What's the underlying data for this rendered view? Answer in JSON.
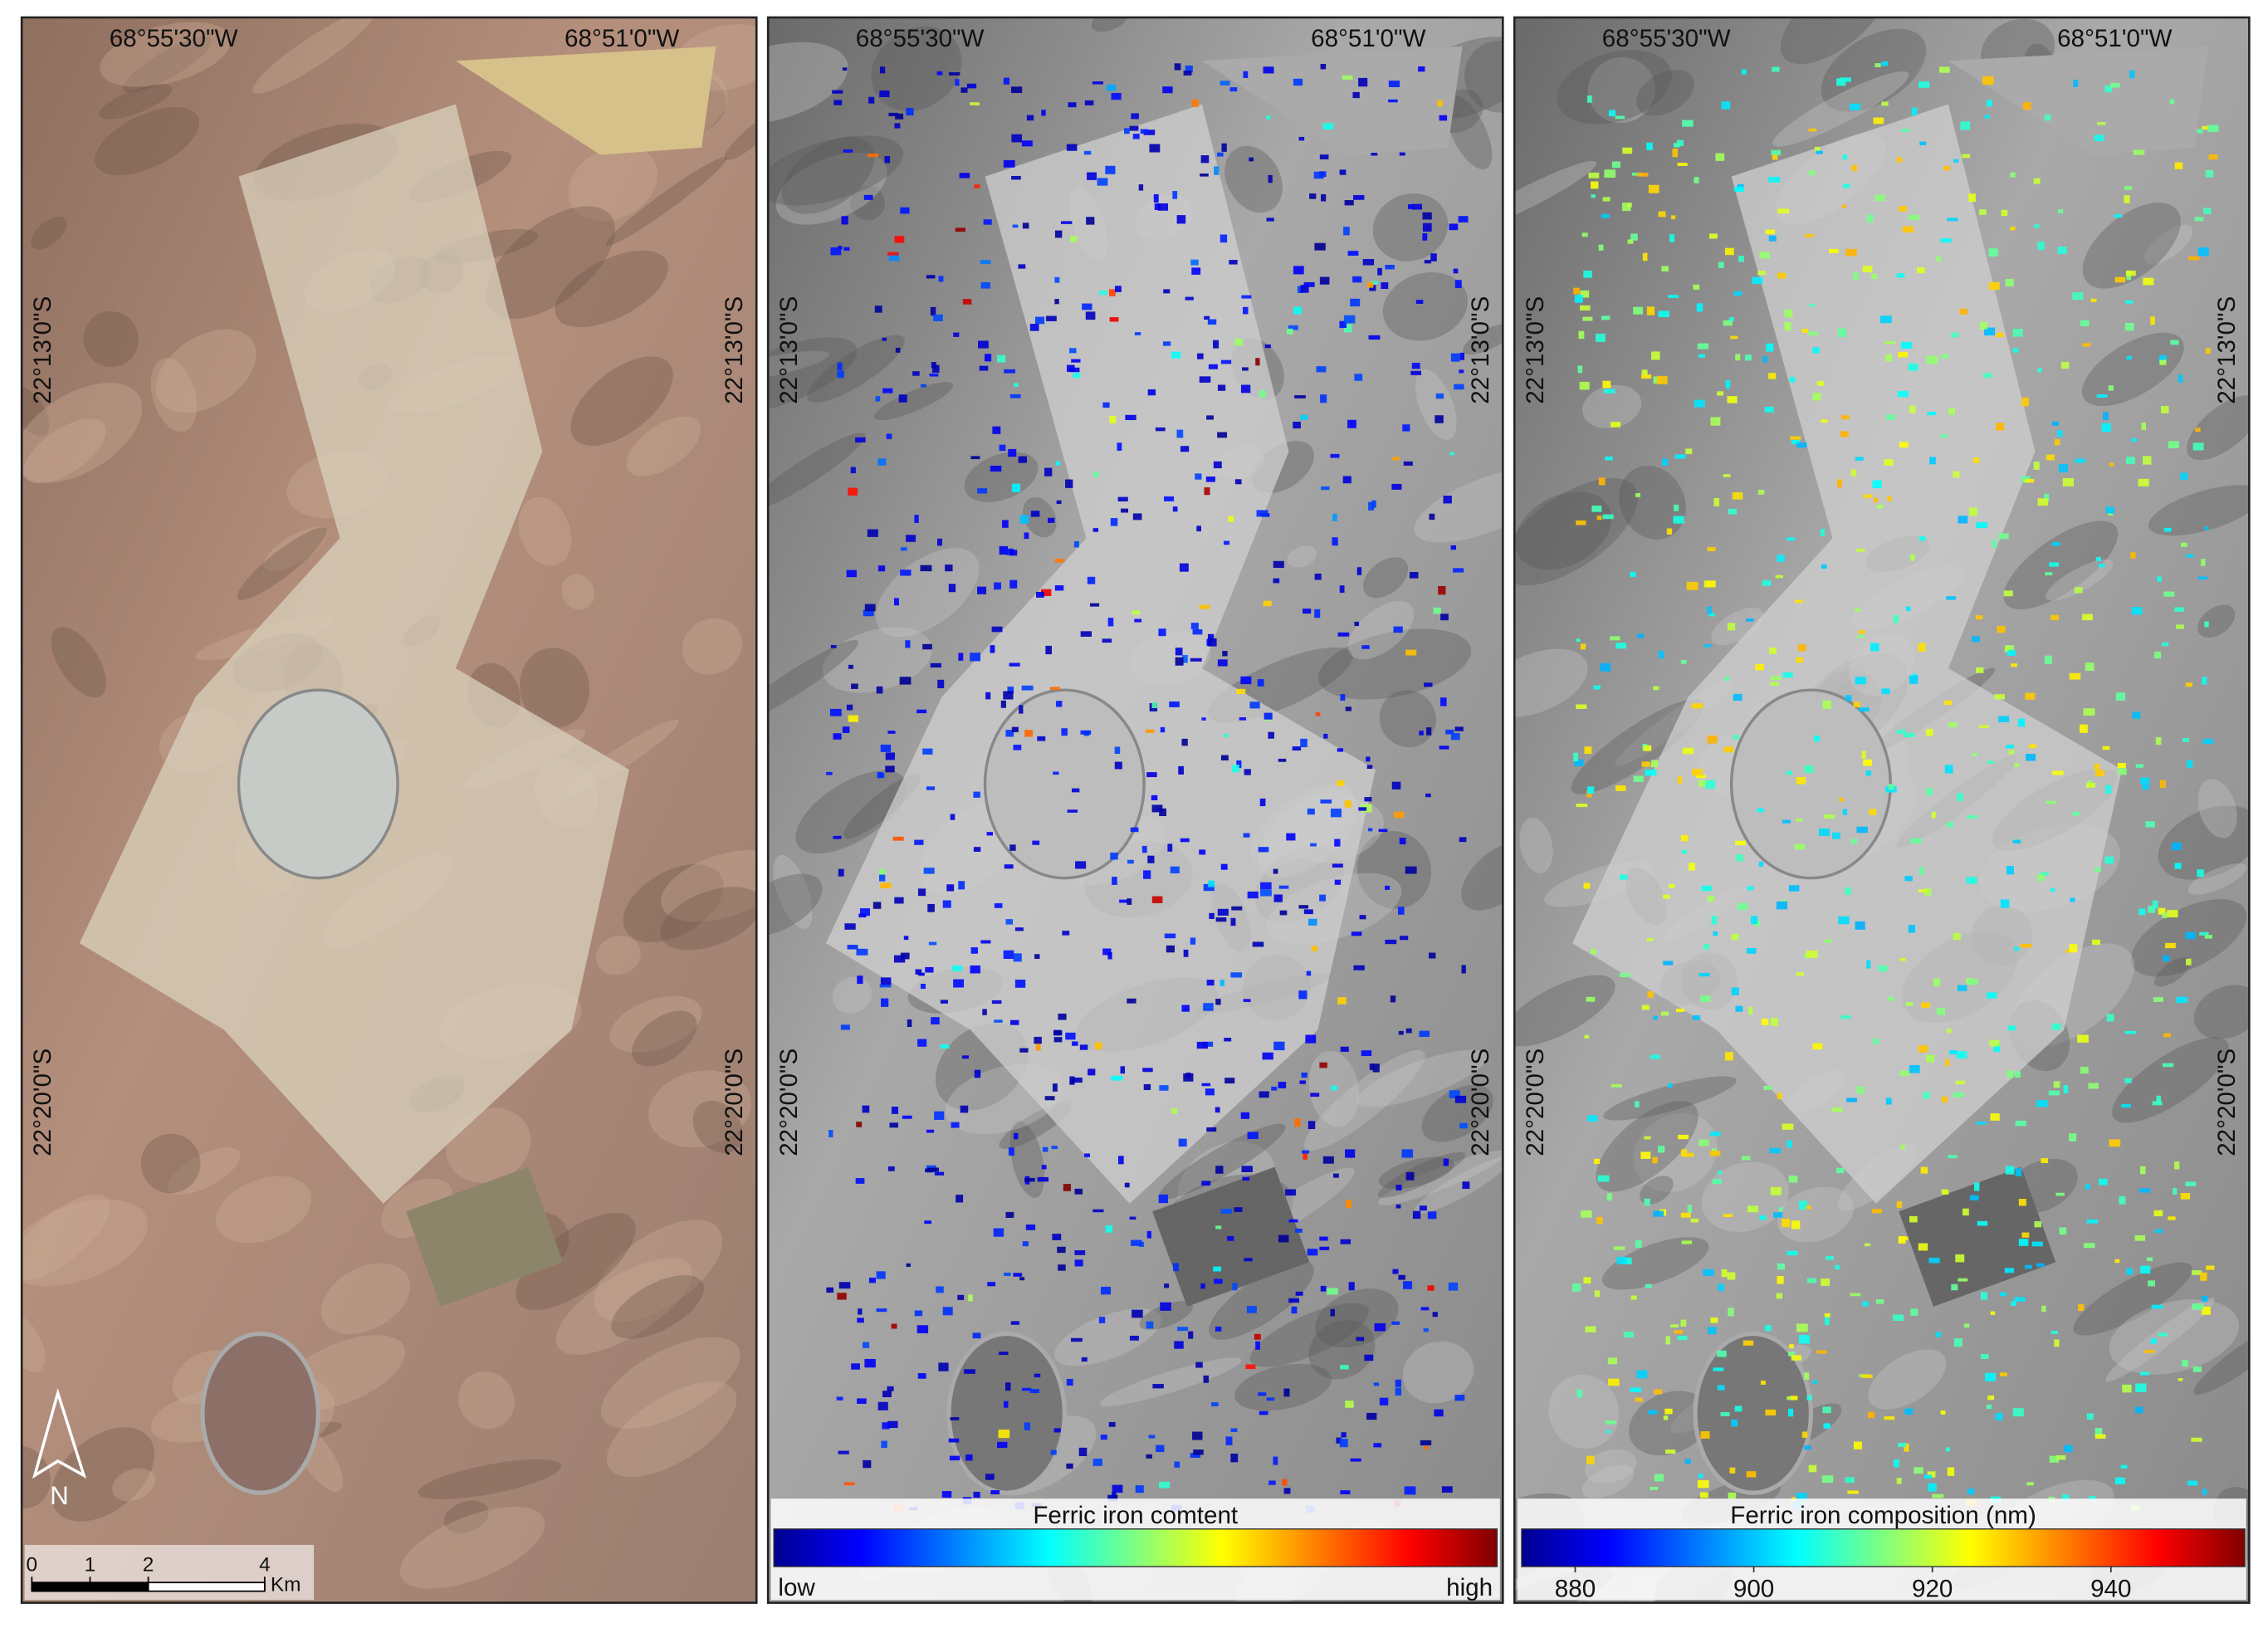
{
  "panels": [
    {
      "lon_labels": [
        "68°55'30\"W",
        "68°51'0\"W"
      ],
      "lat_labels": [
        "22°13'0\"S",
        "22°20'0\"S"
      ]
    },
    {
      "lon_labels": [
        "68°55'30\"W",
        "68°51'0\"W"
      ],
      "lat_labels": [
        "22°13'0\"S",
        "22°20'0\"S"
      ]
    },
    {
      "lon_labels": [
        "68°55'30\"W",
        "68°51'0\"W"
      ],
      "lat_labels": [
        "22°13'0\"S",
        "22°20'0\"S"
      ]
    }
  ],
  "colorbar_content": {
    "title": "Ferric iron comtent",
    "low_label": "low",
    "high_label": "high"
  },
  "colorbar_composition": {
    "title": "Ferric iron composition (nm)",
    "lim": [
      874,
      955
    ],
    "ticks": [
      880,
      900,
      920,
      940
    ]
  },
  "scale_bar": {
    "ticks": [
      0,
      1,
      2,
      4
    ],
    "unit": "Km",
    "lim": [
      0,
      4
    ]
  },
  "north_label": "N"
}
